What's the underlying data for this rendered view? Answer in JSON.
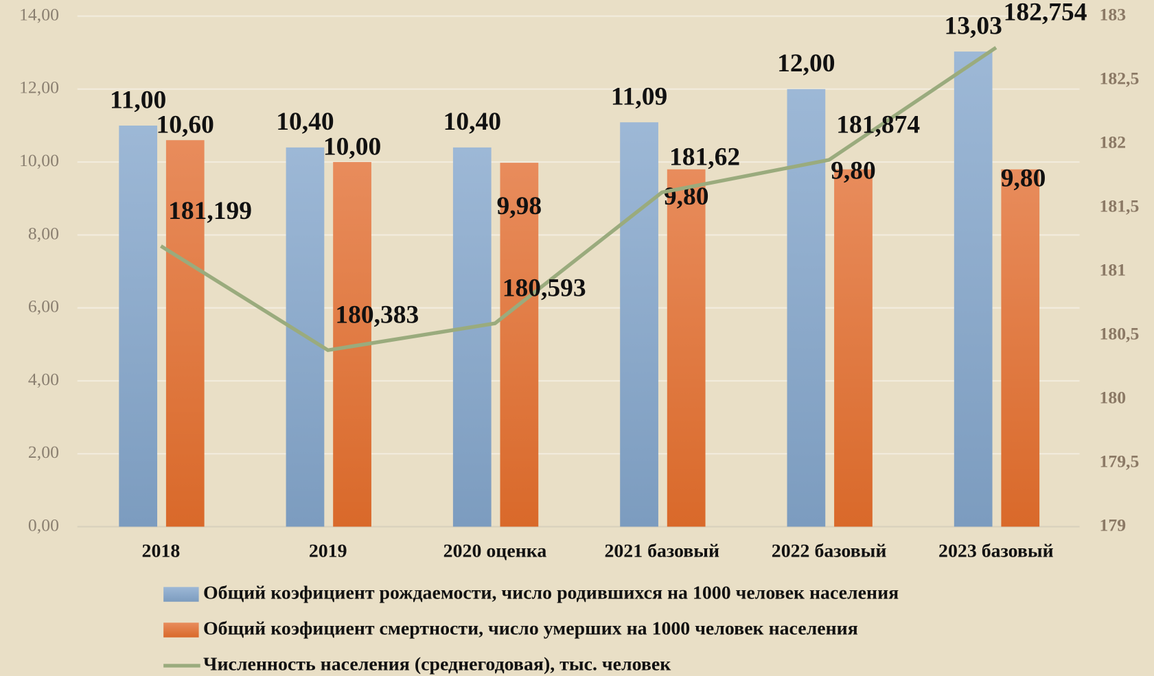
{
  "chart_data": {
    "type": "bar",
    "categories": [
      "2018",
      "2019",
      "2020 оценка",
      "2021 базовый",
      "2022 базовый",
      "2023 базовый"
    ],
    "series": [
      {
        "name": "Общий коэфициент рождаемости, число родившихся на 1000 человек населения",
        "color": "#8ea9c9",
        "values": [
          11.0,
          10.4,
          10.4,
          11.09,
          12.0,
          13.03
        ],
        "value_labels": [
          "11,00",
          "10,40",
          "10,40",
          "11,09",
          "12,00",
          "13,03"
        ]
      },
      {
        "name": "Общий коэфициент смертности, число умерших на 1000 человек населения",
        "color": "#e07a40",
        "values": [
          10.6,
          10.0,
          9.98,
          9.8,
          9.8,
          9.8
        ],
        "value_labels": [
          "10,60",
          "10,00",
          "9,98",
          "9,80",
          "9,80",
          "9,80"
        ]
      },
      {
        "name": "Численность населения (среднегодовая), тыс. человек",
        "color": "#9aab7d",
        "type": "line",
        "axis": "y2",
        "values": [
          181.199,
          180.383,
          180.593,
          181.62,
          181.874,
          182.754
        ],
        "value_labels": [
          "181,199",
          "180,383",
          "180,593",
          "181,62",
          "181,874",
          "182,754"
        ]
      }
    ],
    "ylim": [
      0,
      14
    ],
    "yticks": [
      {
        "value": 0,
        "label": "0,00"
      },
      {
        "value": 2,
        "label": "2,00"
      },
      {
        "value": 4,
        "label": "4,00"
      },
      {
        "value": 6,
        "label": "6,00"
      },
      {
        "value": 8,
        "label": "8,00"
      },
      {
        "value": 10,
        "label": "10,00"
      },
      {
        "value": 12,
        "label": "12,00"
      },
      {
        "value": 14,
        "label": "14,00"
      }
    ],
    "y2lim": [
      179,
      183
    ],
    "y2ticks": [
      179,
      {
        "value": 179.5,
        "label": "179,5"
      },
      180,
      {
        "value": 180.5,
        "label": "180,5"
      },
      181,
      {
        "value": 181.5,
        "label": "181,5"
      },
      182,
      {
        "value": 182.5,
        "label": "182,5"
      },
      183
    ],
    "grid": true,
    "legend": "bottom"
  }
}
